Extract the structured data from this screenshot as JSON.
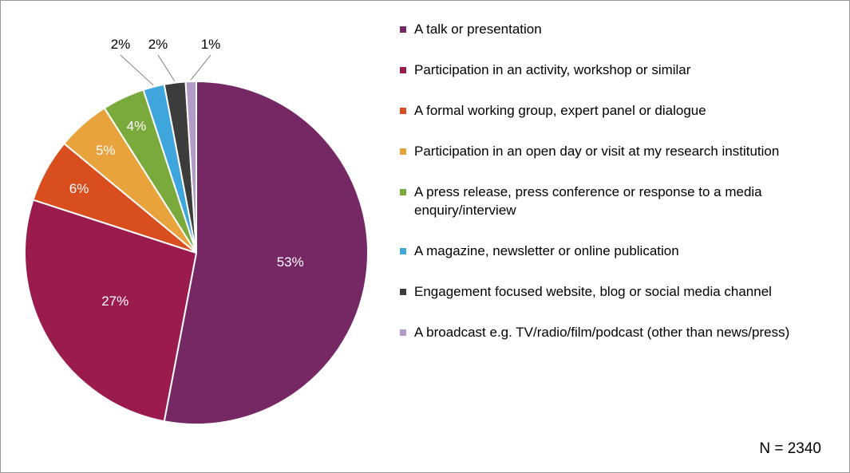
{
  "chart": {
    "type": "pie",
    "background_color": "#ffffff",
    "border_color": "#999999",
    "label_fontsize": 17,
    "label_color_inside": "#ffffff",
    "label_color_outside": "#000000",
    "legend_fontsize": 17,
    "slice_stroke": "#ffffff",
    "slice_stroke_width": 2,
    "n_label": "N = 2340",
    "n_fontsize": 19,
    "slices": [
      {
        "label": "A talk or presentation",
        "value": 53,
        "display": "53%",
        "color": "#752864"
      },
      {
        "label": "Participation in an activity, workshop or similar",
        "value": 27,
        "display": "27%",
        "color": "#9b1b4e"
      },
      {
        "label": "A formal working group, expert panel or dialogue",
        "value": 6,
        "display": "6%",
        "color": "#d94e1f"
      },
      {
        "label": "Participation in an open day or visit at my research institution",
        "value": 5,
        "display": "5%",
        "color": "#e8a33d"
      },
      {
        "label": "A press release, press conference or response to a media enquiry/interview",
        "value": 4,
        "display": "4%",
        "color": "#7aa93c"
      },
      {
        "label": "A magazine, newsletter or online publication",
        "value": 2,
        "display": "2%",
        "color": "#3fa6dd"
      },
      {
        "label": "Engagement focused website, blog or social media channel",
        "value": 2,
        "display": "2%",
        "color": "#3c3c3c"
      },
      {
        "label": "A broadcast e.g. TV/radio/film/podcast (other than news/press)",
        "value": 1,
        "display": "1%",
        "color": "#b39ac7"
      }
    ]
  }
}
